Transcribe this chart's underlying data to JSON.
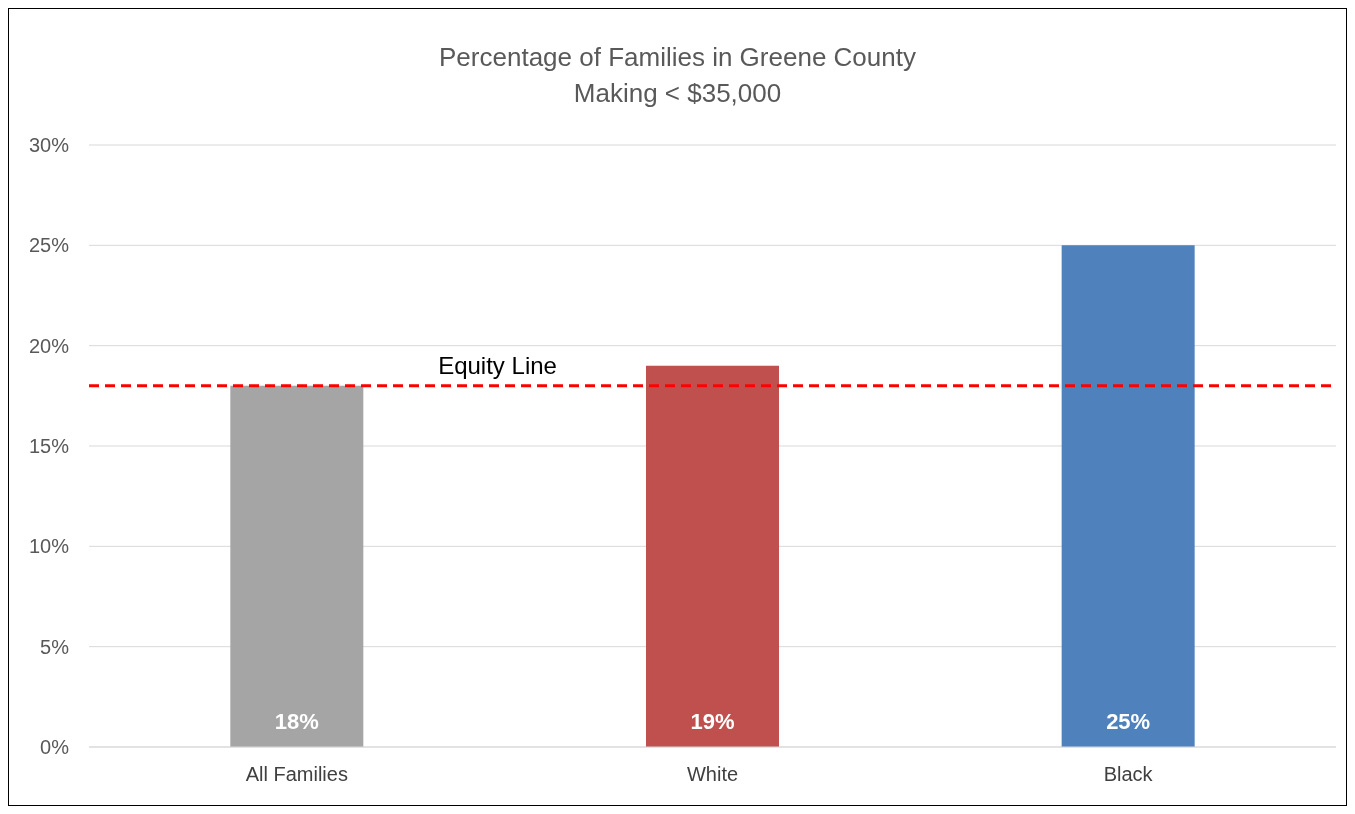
{
  "chart_data": {
    "type": "bar",
    "title": "Percentage of Families in Greene County",
    "subtitle": "Making < $35,000",
    "categories": [
      "All Families",
      "White",
      "Black"
    ],
    "values": [
      18,
      19,
      25
    ],
    "colors": [
      "#a5a5a5",
      "#c0504d",
      "#4f81bd"
    ],
    "value_labels": [
      "18%",
      "19%",
      "25%"
    ],
    "ylim": [
      0,
      30
    ],
    "yticks": [
      {
        "value": 0,
        "label": "0%"
      },
      {
        "value": 5,
        "label": "5%"
      },
      {
        "value": 10,
        "label": "10%"
      },
      {
        "value": 15,
        "label": "15%"
      },
      {
        "value": 20,
        "label": "20%"
      },
      {
        "value": 25,
        "label": "25%"
      },
      {
        "value": 30,
        "label": "30%"
      }
    ],
    "grid": "y",
    "ref_lines": [
      {
        "axis": "y",
        "value": 18,
        "label": "Equity Line",
        "color": "#ff0000",
        "line_style": "dashed"
      }
    ]
  }
}
